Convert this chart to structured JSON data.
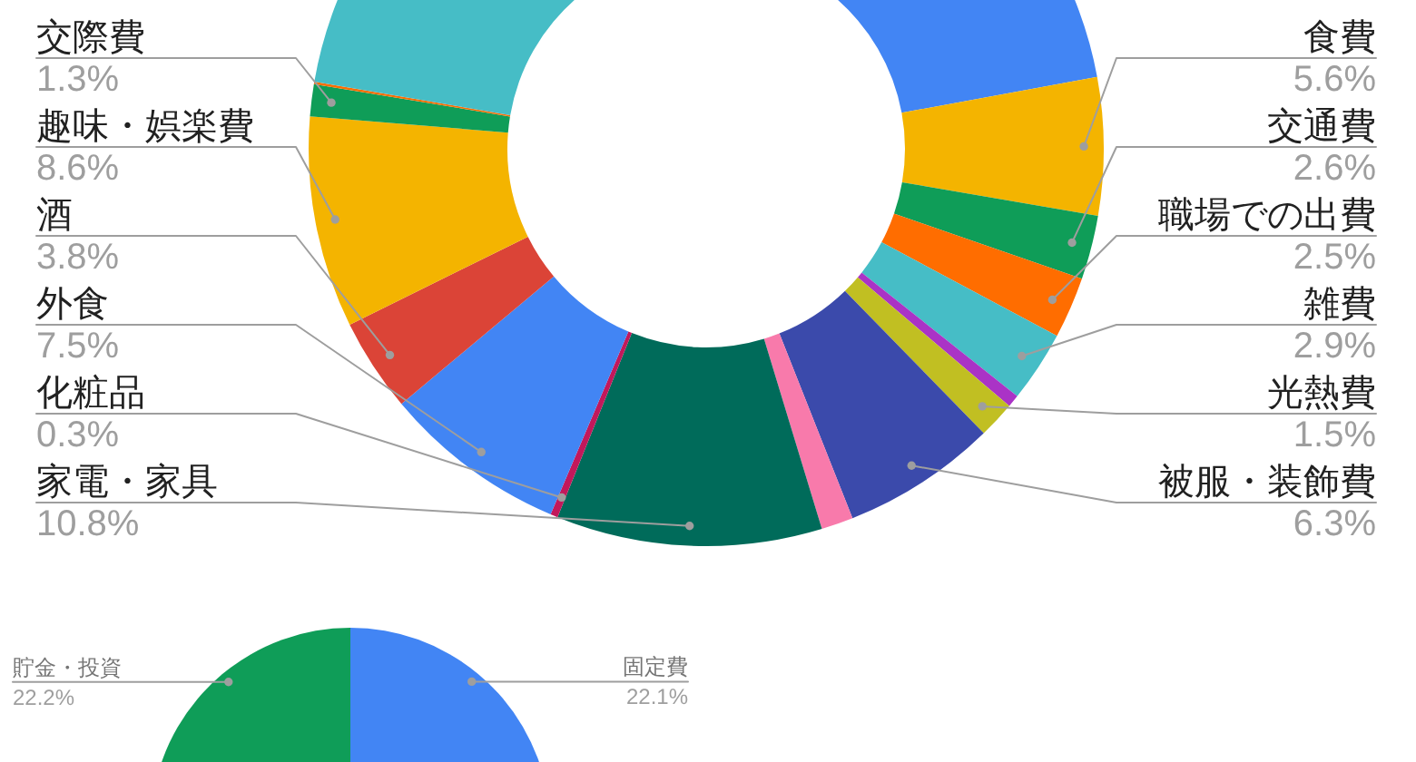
{
  "chart_data": [
    {
      "type": "donut",
      "categories": [
        null,
        "食費",
        "交通費",
        "職場での出費",
        "雑費",
        null,
        "光熱費",
        "被服・装飾費",
        null,
        "家電・家具",
        "化粧品",
        "外食",
        "酒",
        "趣味・娯楽費",
        "交際費",
        null,
        null
      ],
      "values": [
        22.1,
        5.6,
        2.6,
        2.5,
        2.9,
        0.5,
        1.5,
        6.3,
        1.3,
        10.8,
        0.3,
        7.5,
        3.8,
        8.6,
        1.3,
        0.1,
        22.3
      ],
      "colors": [
        "#4285f4",
        "#f4b400",
        "#0f9d58",
        "#ff6d00",
        "#46bdc6",
        "#aa33c6",
        "#c1bf22",
        "#3b4aab",
        "#f87aab",
        "#006b5a",
        "#c2185b",
        "#4285f4",
        "#db4437",
        "#f4b400",
        "#0f9d58",
        "#ff6d00",
        "#46bdc6"
      ],
      "value_labels": [
        null,
        "5.6%",
        "2.6%",
        "2.5%",
        "2.9%",
        null,
        "1.5%",
        "6.3%",
        null,
        "10.8%",
        "0.3%",
        "7.5%",
        "3.8%",
        "8.6%",
        "1.3%",
        null,
        null
      ]
    },
    {
      "type": "pie",
      "categories": [
        "固定費",
        null,
        "貯金・投資"
      ],
      "values": [
        22.1,
        null,
        22.2
      ],
      "colors": [
        "#4285f4",
        null,
        "#0f9d58"
      ],
      "value_labels": [
        "22.1%",
        null,
        "22.2%"
      ]
    }
  ]
}
